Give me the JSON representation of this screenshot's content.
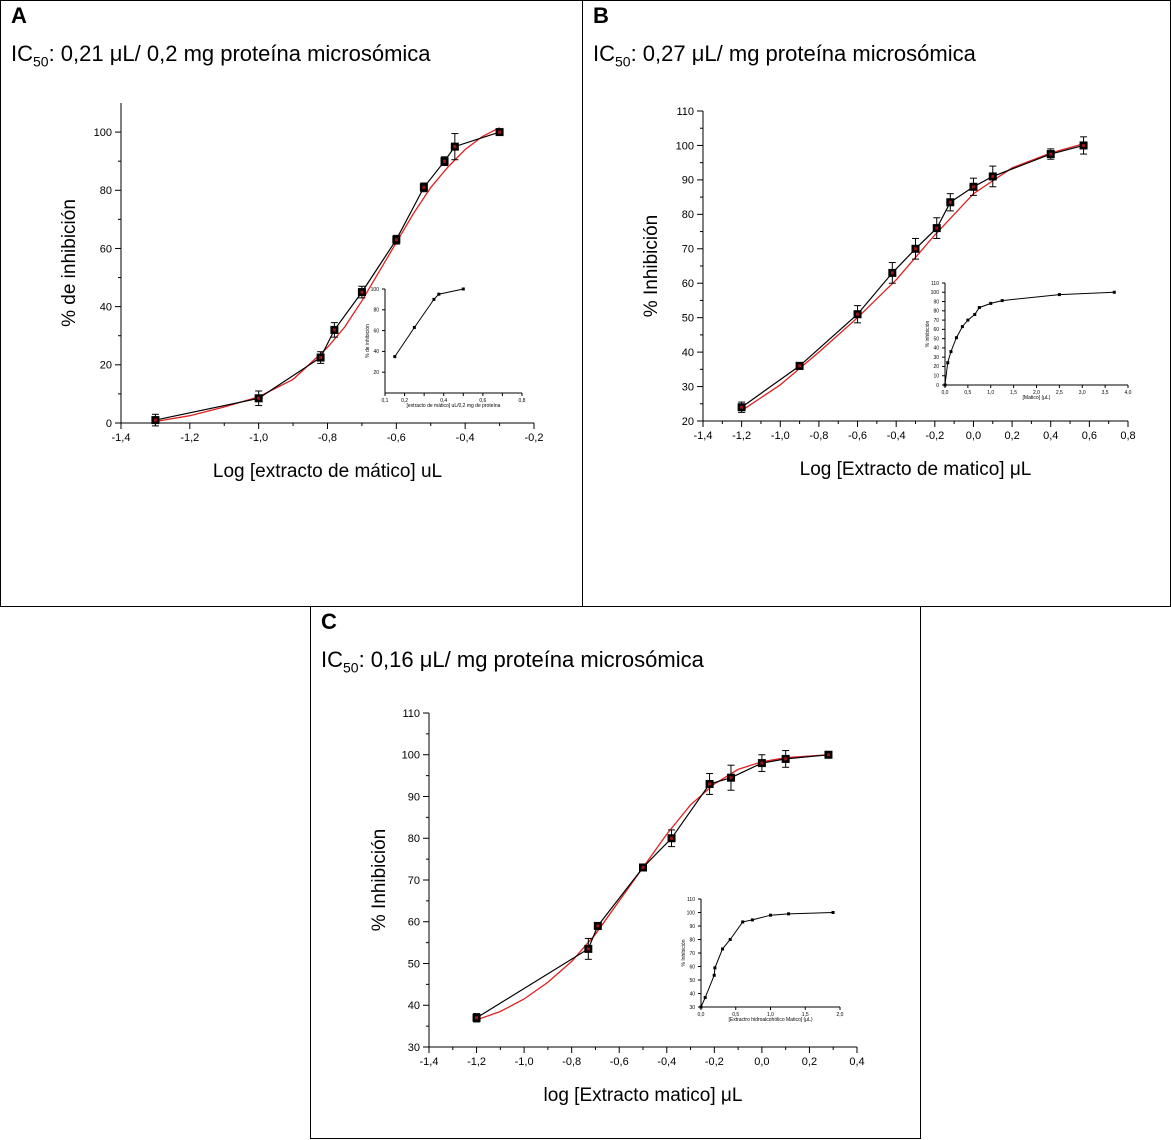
{
  "panels": [
    {
      "letter": "A",
      "title": {
        "prefix": "IC",
        "sub": "50",
        "suffix": ": 0,21 μL/ 0,2 mg proteína microsómica"
      }
    },
    {
      "letter": "B",
      "title": {
        "prefix": "IC",
        "sub": "50",
        "suffix": ": 0,27 μL/ mg proteína microsómica"
      }
    },
    {
      "letter": "C",
      "title": {
        "prefix": "IC",
        "sub": "50",
        "suffix": ": 0,16 μL/ mg proteína microsómica"
      }
    }
  ],
  "chart_data": [
    {
      "type": "scatter",
      "panel": "A",
      "xlabel": "Log [extracto de mático] uL",
      "ylabel": "% de inhibición",
      "xlim": [
        -1.4,
        -0.2
      ],
      "ylim": [
        0,
        110
      ],
      "xticks": [
        -1.4,
        -1.2,
        -1.0,
        -0.8,
        -0.6,
        -0.4,
        -0.2
      ],
      "xtick_labels": [
        "-1,4",
        "-1,2",
        "-1,0",
        "-0,8",
        "-0,6",
        "-0,4",
        "-0,2"
      ],
      "yticks": [
        0,
        20,
        40,
        60,
        80,
        100
      ],
      "ytick_labels": [
        "0",
        "20",
        "40",
        "60",
        "80",
        "100"
      ],
      "series": [
        {
          "style": "data",
          "color": "#000000",
          "x": [
            -1.3,
            -1.0,
            -0.82,
            -0.78,
            -0.7,
            -0.6,
            -0.52,
            -0.46,
            -0.43,
            -0.3
          ],
          "y": [
            1,
            8.5,
            22.5,
            32,
            45,
            63,
            81,
            90,
            95,
            100
          ],
          "err": [
            2,
            2.5,
            2,
            2.5,
            2,
            1.5,
            1.5,
            1.5,
            4.5,
            0.5
          ]
        },
        {
          "style": "fit",
          "color": "#e02020",
          "x": [
            -1.3,
            -1.2,
            -1.1,
            -1.0,
            -0.9,
            -0.8,
            -0.75,
            -0.7,
            -0.65,
            -0.6,
            -0.55,
            -0.5,
            -0.45,
            -0.4,
            -0.35,
            -0.3
          ],
          "y": [
            0.5,
            2.5,
            5.5,
            9,
            15,
            26,
            33,
            42,
            52,
            62,
            72,
            81,
            88,
            94,
            98.5,
            101.5
          ]
        }
      ],
      "inset": {
        "xlabel": "[extracto de mático] uL/0,2 mg de proteína",
        "ylabel": "% de inhibición",
        "xlim": [
          0.1,
          0.8
        ],
        "ylim": [
          0,
          100
        ],
        "xticks": [
          0.1,
          0.2,
          0.3,
          0.4,
          0.5,
          0.6,
          0.7,
          0.8
        ],
        "xtick_labels": [
          "0,1",
          "0,2",
          "",
          "0,4",
          "",
          "0,6",
          "",
          "0,8"
        ],
        "yticks": [
          20,
          40,
          60,
          80,
          100
        ],
        "ytick_labels": [
          "20",
          "40",
          "60",
          "80",
          "100"
        ],
        "x": [
          0.15,
          0.25,
          0.35,
          0.375,
          0.5
        ],
        "y": [
          35,
          63,
          90,
          95,
          100
        ]
      }
    },
    {
      "type": "scatter",
      "panel": "B",
      "xlabel": "Log [Extracto de matico] μL",
      "ylabel": "% Inhibición",
      "xlim": [
        -1.4,
        0.8
      ],
      "ylim": [
        20,
        110
      ],
      "xticks": [
        -1.4,
        -1.2,
        -1.0,
        -0.8,
        -0.6,
        -0.4,
        -0.2,
        0.0,
        0.2,
        0.4,
        0.6,
        0.8
      ],
      "xtick_labels": [
        "-1,4",
        "-1,2",
        "-1,0",
        "-0,8",
        "-0,6",
        "-0,4",
        "-0,2",
        "0,0",
        "0,2",
        "0,4",
        "0,6",
        "0,8"
      ],
      "yticks": [
        20,
        30,
        40,
        50,
        60,
        70,
        80,
        90,
        100,
        110
      ],
      "ytick_labels": [
        "20",
        "30",
        "40",
        "50",
        "60",
        "70",
        "80",
        "90",
        "100",
        "110"
      ],
      "series": [
        {
          "style": "data",
          "color": "#000000",
          "x": [
            -1.2,
            -0.9,
            -0.6,
            -0.42,
            -0.3,
            -0.19,
            -0.12,
            0.0,
            0.1,
            0.4,
            0.57
          ],
          "y": [
            24,
            36,
            51,
            63,
            70,
            76,
            83.5,
            88,
            91,
            97.5,
            100
          ],
          "err": [
            1.5,
            1,
            2.5,
            3,
            3,
            3,
            2.5,
            2.5,
            3,
            1.5,
            2.5
          ]
        },
        {
          "style": "fit",
          "color": "#e02020",
          "x": [
            -1.2,
            -1.0,
            -0.8,
            -0.6,
            -0.4,
            -0.2,
            0.0,
            0.2,
            0.4,
            0.57
          ],
          "y": [
            23,
            30.5,
            40,
            50,
            61,
            74,
            86,
            93.5,
            97.8,
            100.5
          ]
        }
      ],
      "inset": {
        "xlabel": "[Matico] (μL)",
        "ylabel": "% inhibición",
        "xlim": [
          0,
          4.0
        ],
        "ylim": [
          0,
          110
        ],
        "xticks": [
          0,
          0.5,
          1.0,
          1.5,
          2.0,
          2.5,
          3.0,
          3.5,
          4.0
        ],
        "xtick_labels": [
          "0,0",
          "0,5",
          "1,0",
          "1,5",
          "2,0",
          "2,5",
          "3,0",
          "3,5",
          "4,0"
        ],
        "yticks": [
          0,
          10,
          20,
          30,
          40,
          50,
          60,
          70,
          80,
          90,
          100,
          110
        ],
        "ytick_labels": [
          "0",
          "10",
          "20",
          "30",
          "40",
          "50",
          "60",
          "70",
          "80",
          "90",
          "100",
          "110"
        ],
        "x": [
          0,
          0.06,
          0.13,
          0.25,
          0.38,
          0.5,
          0.65,
          0.75,
          1.0,
          1.25,
          2.5,
          3.7
        ],
        "y": [
          0,
          24,
          36,
          51,
          63,
          70,
          76,
          83.5,
          88,
          91,
          97.5,
          100
        ]
      }
    },
    {
      "type": "scatter",
      "panel": "C",
      "xlabel": "log [Extracto matico] μL",
      "ylabel": "% Inhibición",
      "xlim": [
        -1.4,
        0.4
      ],
      "ylim": [
        30,
        110
      ],
      "xticks": [
        -1.4,
        -1.2,
        -1.0,
        -0.8,
        -0.6,
        -0.4,
        -0.2,
        0.0,
        0.2,
        0.4
      ],
      "xtick_labels": [
        "-1,4",
        "-1,2",
        "-1,0",
        "-0,8",
        "-0,6",
        "-0,4",
        "-0,2",
        "0,0",
        "0,2",
        "0,4"
      ],
      "yticks": [
        30,
        40,
        50,
        60,
        70,
        80,
        90,
        100,
        110
      ],
      "ytick_labels": [
        "30",
        "40",
        "50",
        "60",
        "70",
        "80",
        "90",
        "100",
        "110"
      ],
      "series": [
        {
          "style": "data",
          "color": "#000000",
          "x": [
            -1.2,
            -0.73,
            -0.69,
            -0.5,
            -0.38,
            -0.22,
            -0.13,
            0.0,
            0.1,
            0.28
          ],
          "y": [
            37,
            53.5,
            59,
            73,
            80,
            93,
            94.5,
            98,
            99,
            100
          ],
          "err": [
            1,
            2.5,
            0.5,
            0.5,
            2,
            2.5,
            3,
            2,
            2,
            0.5
          ]
        },
        {
          "style": "fit",
          "color": "#e02020",
          "x": [
            -1.2,
            -1.1,
            -1.0,
            -0.9,
            -0.8,
            -0.7,
            -0.6,
            -0.5,
            -0.4,
            -0.3,
            -0.2,
            -0.1,
            0.0,
            0.1,
            0.28
          ],
          "y": [
            36.5,
            38.5,
            41.5,
            45.5,
            50.5,
            57,
            65,
            73,
            81,
            88,
            93,
            96.5,
            98.3,
            99.3,
            100
          ]
        }
      ],
      "inset": {
        "xlabel": "[Extractro hidroalcohólico Matico] (μL)",
        "ylabel": "% Inhibición",
        "xlim": [
          0,
          2.0
        ],
        "ylim": [
          30,
          110
        ],
        "xticks": [
          0,
          0.5,
          1.0,
          1.5,
          2.0
        ],
        "xtick_labels": [
          "0,0",
          "0,5",
          "1,0",
          "1,5",
          "2,0"
        ],
        "yticks": [
          30,
          40,
          50,
          60,
          70,
          80,
          90,
          100,
          110
        ],
        "ytick_labels": [
          "30",
          "40",
          "50",
          "60",
          "70",
          "80",
          "90",
          "100",
          "110"
        ],
        "x": [
          0,
          0.06,
          0.19,
          0.2,
          0.31,
          0.42,
          0.6,
          0.74,
          1.0,
          1.26,
          1.9
        ],
        "y": [
          30,
          37,
          53.5,
          59,
          73,
          80,
          93,
          94.5,
          98,
          99,
          100
        ]
      }
    }
  ]
}
